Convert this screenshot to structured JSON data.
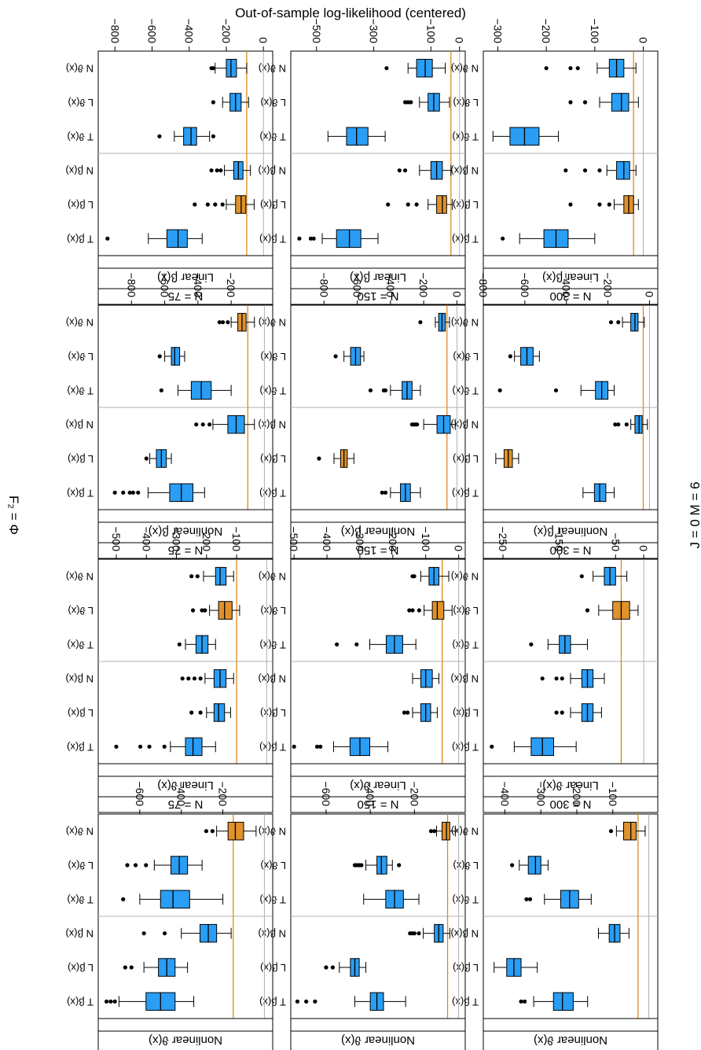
{
  "figure": {
    "ylabel": "Out-of-sample log-likelihood (centered)",
    "right_label": "J = 0 M = 6",
    "left_label": "F₂ = Φ",
    "colors": {
      "box_default": "#2a9df4",
      "box_highlight": "#e0922b",
      "ref_line": "#e08a1e",
      "zero_line": "#b0b0b0",
      "strip_bg": "#ffffff"
    },
    "box_labels": [
      "N ϑ(x)",
      "L ϑ(x)",
      "T ϑ(x)",
      "N β(x)",
      "L β(x)",
      "T β(x)"
    ]
  },
  "chart_data": [
    {
      "type": "boxplot",
      "title": "Linear β(x)",
      "n_label": "N = 300",
      "ylim": [
        -330,
        30
      ],
      "ticks": [
        -300,
        -200,
        -100,
        0
      ],
      "ref": -20,
      "highlight": 4,
      "boxes": [
        {
          "q1": -70,
          "med": -55,
          "q3": -40,
          "lw": -95,
          "uw": -15,
          "out": [
            -135,
            -150,
            -200
          ]
        },
        {
          "q1": -65,
          "med": -45,
          "q3": -30,
          "lw": -90,
          "uw": -10,
          "out": [
            -120,
            -150
          ]
        },
        {
          "q1": -275,
          "med": -245,
          "q3": -215,
          "lw": -310,
          "uw": -175,
          "out": []
        },
        {
          "q1": -55,
          "med": -40,
          "q3": -28,
          "lw": -75,
          "uw": -15,
          "out": [
            -90,
            -120,
            -160
          ]
        },
        {
          "q1": -40,
          "med": -30,
          "q3": -20,
          "lw": -60,
          "uw": -10,
          "out": [
            -70,
            -90,
            -150
          ]
        },
        {
          "q1": -205,
          "med": -180,
          "q3": -155,
          "lw": -255,
          "uw": -100,
          "out": [
            -290
          ]
        }
      ]
    },
    {
      "type": "boxplot",
      "title": "Nonlinear β(x)",
      "n_label": "N = 300",
      "ylim": [
        -800,
        40
      ],
      "ticks": [
        -800,
        -600,
        -400,
        -200,
        0
      ],
      "ref": -30,
      "highlight": 4,
      "boxes": [
        {
          "q1": -90,
          "med": -70,
          "q3": -55,
          "lw": -130,
          "uw": -25,
          "out": [
            -150,
            -185
          ]
        },
        {
          "q1": -620,
          "med": -590,
          "q3": -560,
          "lw": -650,
          "uw": -530,
          "out": [
            -670
          ]
        },
        {
          "q1": -260,
          "med": -230,
          "q3": -200,
          "lw": -330,
          "uw": -170,
          "out": [
            -450,
            -720
          ]
        },
        {
          "q1": -70,
          "med": -50,
          "q3": -35,
          "lw": -90,
          "uw": -10,
          "out": [
            -110,
            -150,
            -165
          ]
        },
        {
          "q1": -700,
          "med": -680,
          "q3": -660,
          "lw": -740,
          "uw": -630,
          "out": []
        },
        {
          "q1": -265,
          "med": -240,
          "q3": -210,
          "lw": -320,
          "uw": -170,
          "out": []
        }
      ]
    },
    {
      "type": "boxplot",
      "title": "Linear ϑ(x)",
      "n_label": "N = 300",
      "ylim": [
        -285,
        25
      ],
      "ticks": [
        -250,
        -150,
        -50,
        0
      ],
      "ref": -40,
      "highlight": 1,
      "boxes": [
        {
          "q1": -70,
          "med": -60,
          "q3": -50,
          "lw": -90,
          "uw": -30,
          "out": [
            -110
          ]
        },
        {
          "q1": -55,
          "med": -40,
          "q3": -25,
          "lw": -80,
          "uw": -10,
          "out": [
            -100
          ]
        },
        {
          "q1": -150,
          "med": -140,
          "q3": -130,
          "lw": -170,
          "uw": -100,
          "out": [
            -200
          ]
        },
        {
          "q1": -110,
          "med": -100,
          "q3": -90,
          "lw": -130,
          "uw": -70,
          "out": [
            -145,
            -155,
            -180
          ]
        },
        {
          "q1": -110,
          "med": -100,
          "q3": -90,
          "lw": -130,
          "uw": -75,
          "out": [
            -145,
            -155
          ]
        },
        {
          "q1": -200,
          "med": -180,
          "q3": -160,
          "lw": -230,
          "uw": -120,
          "out": [
            -270
          ]
        }
      ]
    },
    {
      "type": "boxplot",
      "title": "Nonlinear ϑ(x)",
      "n_label": "N = 300",
      "ylim": [
        -460,
        25
      ],
      "ticks": [
        -400,
        -300,
        -200,
        -100
      ],
      "ref": -30,
      "highlight": 0,
      "boxes": [
        {
          "q1": -70,
          "med": -50,
          "q3": -35,
          "lw": -90,
          "uw": -10,
          "out": [
            -105
          ]
        },
        {
          "q1": -335,
          "med": -315,
          "q3": -300,
          "lw": -360,
          "uw": -280,
          "out": [
            -380
          ]
        },
        {
          "q1": -245,
          "med": -220,
          "q3": -195,
          "lw": -290,
          "uw": -160,
          "out": [
            -330,
            -340
          ]
        },
        {
          "q1": -110,
          "med": -95,
          "q3": -80,
          "lw": -140,
          "uw": -55,
          "out": []
        },
        {
          "q1": -395,
          "med": -375,
          "q3": -355,
          "lw": -430,
          "uw": -310,
          "out": []
        },
        {
          "q1": -265,
          "med": -240,
          "q3": -210,
          "lw": -320,
          "uw": -170,
          "out": [
            -345,
            -355
          ]
        }
      ]
    },
    {
      "type": "boxplot",
      "title": "Linear β(x)",
      "n_label": "N = 150",
      "ylim": [
        -590,
        20
      ],
      "ticks": [
        -500,
        -300,
        -100,
        0
      ],
      "ref": -30,
      "highlight": 4,
      "boxes": [
        {
          "q1": -150,
          "med": -120,
          "q3": -95,
          "lw": -180,
          "uw": -50,
          "out": [
            -255
          ]
        },
        {
          "q1": -110,
          "med": -90,
          "q3": -70,
          "lw": -140,
          "uw": -35,
          "out": [
            -170,
            -180,
            -190
          ]
        },
        {
          "q1": -395,
          "med": -360,
          "q3": -320,
          "lw": -460,
          "uw": -260,
          "out": []
        },
        {
          "q1": -100,
          "med": -80,
          "q3": -60,
          "lw": -140,
          "uw": -30,
          "out": [
            -190,
            -210
          ]
        },
        {
          "q1": -80,
          "med": -60,
          "q3": -45,
          "lw": -110,
          "uw": -25,
          "out": [
            -150,
            -180,
            -250
          ]
        },
        {
          "q1": -430,
          "med": -385,
          "q3": -345,
          "lw": -480,
          "uw": -285,
          "out": [
            -510,
            -520,
            -560
          ]
        }
      ]
    },
    {
      "type": "boxplot",
      "title": "Nonlinear β(x)",
      "n_label": "N = 150",
      "ylim": [
        -1000,
        50
      ],
      "ticks": [
        -800,
        -600,
        -400,
        -200,
        0
      ],
      "ref": -60,
      "highlight": 4,
      "boxes": [
        {
          "q1": -110,
          "med": -90,
          "q3": -70,
          "lw": -130,
          "uw": -45,
          "out": [
            -220
          ]
        },
        {
          "q1": -640,
          "med": -610,
          "q3": -580,
          "lw": -680,
          "uw": -560,
          "out": [
            -730
          ]
        },
        {
          "q1": -330,
          "med": -300,
          "q3": -270,
          "lw": -400,
          "uw": -220,
          "out": [
            -430,
            -440,
            -520
          ]
        },
        {
          "q1": -120,
          "med": -80,
          "q3": -40,
          "lw": -200,
          "uw": -10,
          "out": [
            -240,
            -250,
            -260,
            -270
          ]
        },
        {
          "q1": -700,
          "med": -680,
          "q3": -660,
          "lw": -740,
          "uw": -620,
          "out": [
            -830
          ]
        },
        {
          "q1": -340,
          "med": -310,
          "q3": -280,
          "lw": -400,
          "uw": -220,
          "out": [
            -430,
            -450
          ]
        }
      ]
    },
    {
      "type": "boxplot",
      "title": "Linear ϑ(x)",
      "n_label": "N = 150",
      "ylim": [
        -510,
        20
      ],
      "ticks": [
        -500,
        -400,
        -300,
        -200,
        -100,
        0
      ],
      "ref": -50,
      "highlight": 1,
      "boxes": [
        {
          "q1": -90,
          "med": -75,
          "q3": -60,
          "lw": -115,
          "uw": -30,
          "out": [
            -135,
            -140
          ]
        },
        {
          "q1": -80,
          "med": -65,
          "q3": -45,
          "lw": -105,
          "uw": -20,
          "out": [
            -120,
            -140,
            -150
          ]
        },
        {
          "q1": -220,
          "med": -195,
          "q3": -170,
          "lw": -270,
          "uw": -130,
          "out": [
            -310,
            -370
          ]
        },
        {
          "q1": -115,
          "med": -100,
          "q3": -80,
          "lw": -140,
          "uw": -60,
          "out": []
        },
        {
          "q1": -115,
          "med": -100,
          "q3": -85,
          "lw": -140,
          "uw": -65,
          "out": [
            -155,
            -165
          ]
        },
        {
          "q1": -330,
          "med": -300,
          "q3": -270,
          "lw": -380,
          "uw": -215,
          "out": [
            -420,
            -430,
            -500
          ]
        }
      ]
    },
    {
      "type": "boxplot",
      "title": "Nonlinear ϑ(x)",
      "n_label": "N = 150",
      "ylim": [
        -760,
        30
      ],
      "ticks": [
        -600,
        -400,
        -200
      ],
      "ref": -50,
      "highlight": 0,
      "boxes": [
        {
          "q1": -75,
          "med": -55,
          "q3": -40,
          "lw": -100,
          "uw": -15,
          "out": [
            -110,
            -125
          ]
        },
        {
          "q1": -370,
          "med": -350,
          "q3": -325,
          "lw": -420,
          "uw": -300,
          "out": [
            -270,
            -440,
            -450,
            -460,
            -470
          ]
        },
        {
          "q1": -330,
          "med": -290,
          "q3": -250,
          "lw": -430,
          "uw": -180,
          "out": []
        },
        {
          "q1": -110,
          "med": -90,
          "q3": -70,
          "lw": -160,
          "uw": -40,
          "out": [
            -180,
            -200,
            -210,
            -220
          ]
        },
        {
          "q1": -490,
          "med": -470,
          "q3": -450,
          "lw": -540,
          "uw": -420,
          "out": [
            -570,
            -600
          ]
        },
        {
          "q1": -400,
          "med": -370,
          "q3": -340,
          "lw": -470,
          "uw": -240,
          "out": [
            -650,
            -690,
            -730
          ]
        }
      ]
    },
    {
      "type": "boxplot",
      "title": "Linear β(x)",
      "n_label": "N = 75",
      "ylim": [
        -890,
        50
      ],
      "ticks": [
        -800,
        -600,
        -400,
        -200,
        0
      ],
      "ref": -90,
      "highlight": 4,
      "boxes": [
        {
          "q1": -200,
          "med": -175,
          "q3": -145,
          "lw": -260,
          "uw": -90,
          "out": [
            -270,
            -280
          ]
        },
        {
          "q1": -180,
          "med": -150,
          "q3": -120,
          "lw": -220,
          "uw": -80,
          "out": [
            -270
          ]
        },
        {
          "q1": -430,
          "med": -390,
          "q3": -360,
          "lw": -480,
          "uw": -290,
          "out": [
            -270,
            -560
          ]
        },
        {
          "q1": -160,
          "med": -135,
          "q3": -110,
          "lw": -210,
          "uw": -70,
          "out": [
            -230,
            -250,
            -280
          ]
        },
        {
          "q1": -150,
          "med": -120,
          "q3": -95,
          "lw": -200,
          "uw": -50,
          "out": [
            -220,
            -260,
            -300,
            -370
          ]
        },
        {
          "q1": -520,
          "med": -460,
          "q3": -410,
          "lw": -620,
          "uw": -330,
          "out": [
            -840
          ]
        }
      ]
    },
    {
      "type": "boxplot",
      "title": "Nonlinear β(x)",
      "n_label": "N = 75",
      "ylim": [
        -1000,
        50
      ],
      "ticks": [
        -800,
        -600,
        -400,
        -200
      ],
      "ref": -100,
      "highlight": 0,
      "boxes": [
        {
          "q1": -160,
          "med": -135,
          "q3": -110,
          "lw": -200,
          "uw": -60,
          "out": [
            -220,
            -250,
            -270
          ]
        },
        {
          "q1": -560,
          "med": -540,
          "q3": -510,
          "lw": -600,
          "uw": -480,
          "out": [
            -630
          ]
        },
        {
          "q1": -440,
          "med": -380,
          "q3": -320,
          "lw": -520,
          "uw": -200,
          "out": [
            -620
          ]
        },
        {
          "q1": -220,
          "med": -170,
          "q3": -120,
          "lw": -310,
          "uw": -60,
          "out": [
            -330,
            -370,
            -410
          ]
        },
        {
          "q1": -650,
          "med": -620,
          "q3": -590,
          "lw": -690,
          "uw": -560,
          "out": [
            -710
          ]
        },
        {
          "q1": -570,
          "med": -500,
          "q3": -430,
          "lw": -700,
          "uw": -360,
          "out": [
            -760,
            -790,
            -810,
            -850,
            -900
          ]
        }
      ]
    },
    {
      "type": "boxplot",
      "title": "Linear ϑ(x)",
      "n_label": "N = 75",
      "ylim": [
        -560,
        20
      ],
      "ticks": [
        -500,
        -400,
        -300,
        -200,
        -100
      ],
      "ref": -100,
      "highlight": 1,
      "boxes": [
        {
          "q1": -170,
          "med": -155,
          "q3": -135,
          "lw": -210,
          "uw": -110,
          "out": [
            -230,
            -250
          ]
        },
        {
          "q1": -160,
          "med": -140,
          "q3": -115,
          "lw": -190,
          "uw": -90,
          "out": [
            -205,
            -215,
            -245
          ]
        },
        {
          "q1": -235,
          "med": -215,
          "q3": -195,
          "lw": -270,
          "uw": -170,
          "out": [
            -290
          ]
        },
        {
          "q1": -175,
          "med": -155,
          "q3": -135,
          "lw": -205,
          "uw": -110,
          "out": [
            -220,
            -240,
            -260,
            -280
          ]
        },
        {
          "q1": -175,
          "med": -160,
          "q3": -140,
          "lw": -200,
          "uw": -120,
          "out": [
            -220,
            -250
          ]
        },
        {
          "q1": -270,
          "med": -245,
          "q3": -215,
          "lw": -320,
          "uw": -170,
          "out": [
            -340,
            -390,
            -420,
            -500
          ]
        }
      ]
    },
    {
      "type": "boxplot",
      "title": "Nonlinear ϑ(x)",
      "n_label": "N = 75",
      "ylim": [
        -800,
        40
      ],
      "ticks": [
        -600,
        -400,
        -200
      ],
      "ref": -150,
      "highlight": 0,
      "boxes": [
        {
          "q1": -175,
          "med": -140,
          "q3": -100,
          "lw": -230,
          "uw": -40,
          "out": [
            -250,
            -280
          ]
        },
        {
          "q1": -450,
          "med": -410,
          "q3": -370,
          "lw": -530,
          "uw": -300,
          "out": [
            -570,
            -620,
            -660
          ]
        },
        {
          "q1": -500,
          "med": -440,
          "q3": -360,
          "lw": -600,
          "uw": -200,
          "out": [
            -680
          ]
        },
        {
          "q1": -310,
          "med": -270,
          "q3": -230,
          "lw": -400,
          "uw": -160,
          "out": [
            -480,
            -580
          ]
        },
        {
          "q1": -510,
          "med": -470,
          "q3": -430,
          "lw": -580,
          "uw": -370,
          "out": [
            -640,
            -670
          ]
        },
        {
          "q1": -570,
          "med": -500,
          "q3": -430,
          "lw": -700,
          "uw": -340,
          "out": [
            -720,
            -740,
            -760
          ]
        }
      ]
    }
  ]
}
